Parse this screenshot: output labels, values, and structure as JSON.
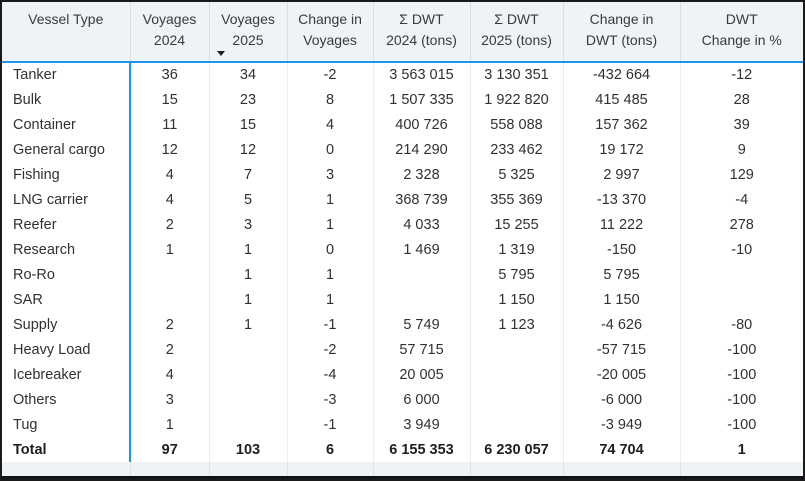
{
  "visual": {
    "type": "data-table",
    "description": "Vessel voyages and DWT comparison 2024 vs 2025"
  },
  "colors": {
    "accent_blue": "#1e96e8",
    "header_bg": "#eef3f6",
    "body_bg": "#ffffff",
    "frame_border": "#1a1a1a",
    "bottom_line": "#10141d",
    "header_separator": "#d9dfe3",
    "body_separator": "#eaeef1",
    "text": "#323130"
  },
  "table": {
    "columns": [
      {
        "id": "vessel_type",
        "label_lines": [
          "Vessel Type"
        ],
        "align": "left",
        "sort": null
      },
      {
        "id": "voyages_2024",
        "label_lines": [
          "Voyages",
          "2024"
        ],
        "align": "center",
        "sort": null
      },
      {
        "id": "voyages_2025",
        "label_lines": [
          "Voyages",
          "2025"
        ],
        "align": "center",
        "sort": "descending"
      },
      {
        "id": "change_voyages",
        "label_lines": [
          "Change in",
          "Voyages"
        ],
        "align": "center",
        "sort": null
      },
      {
        "id": "dwt_2024",
        "label_lines": [
          "Σ DWT",
          "2024 (tons)"
        ],
        "align": "center",
        "sort": null
      },
      {
        "id": "dwt_2025",
        "label_lines": [
          "Σ DWT",
          "2025 (tons)"
        ],
        "align": "center",
        "sort": null
      },
      {
        "id": "change_dwt",
        "label_lines": [
          "Change in",
          "DWT (tons)"
        ],
        "align": "center",
        "sort": null
      },
      {
        "id": "dwt_change_pct",
        "label_lines": [
          "DWT",
          "Change in %"
        ],
        "align": "center",
        "sort": null
      }
    ],
    "rows": [
      {
        "cells": [
          "Tanker",
          "36",
          "34",
          "-2",
          "3 563 015",
          "3 130 351",
          "-432 664",
          "-12"
        ]
      },
      {
        "cells": [
          "Bulk",
          "15",
          "23",
          "8",
          "1 507 335",
          "1 922 820",
          "415 485",
          "28"
        ]
      },
      {
        "cells": [
          "Container",
          "11",
          "15",
          "4",
          "400 726",
          "558 088",
          "157 362",
          "39"
        ]
      },
      {
        "cells": [
          "General cargo",
          "12",
          "12",
          "0",
          "214 290",
          "233 462",
          "19 172",
          "9"
        ]
      },
      {
        "cells": [
          "Fishing",
          "4",
          "7",
          "3",
          "2 328",
          "5 325",
          "2 997",
          "129"
        ]
      },
      {
        "cells": [
          "LNG carrier",
          "4",
          "5",
          "1",
          "368 739",
          "355 369",
          "-13 370",
          "-4"
        ]
      },
      {
        "cells": [
          "Reefer",
          "2",
          "3",
          "1",
          "4 033",
          "15 255",
          "11 222",
          "278"
        ]
      },
      {
        "cells": [
          "Research",
          "1",
          "1",
          "0",
          "1 469",
          "1 319",
          "-150",
          "-10"
        ]
      },
      {
        "cells": [
          "Ro-Ro",
          "",
          "1",
          "1",
          "",
          "5 795",
          "5 795",
          ""
        ]
      },
      {
        "cells": [
          "SAR",
          "",
          "1",
          "1",
          "",
          "1 150",
          "1 150",
          ""
        ]
      },
      {
        "cells": [
          "Supply",
          "2",
          "1",
          "-1",
          "5 749",
          "1 123",
          "-4 626",
          "-80"
        ]
      },
      {
        "cells": [
          "Heavy Load",
          "2",
          "",
          "-2",
          "57 715",
          "",
          "-57 715",
          "-100"
        ]
      },
      {
        "cells": [
          "Icebreaker",
          "4",
          "",
          "-4",
          "20 005",
          "",
          "-20 005",
          "-100"
        ]
      },
      {
        "cells": [
          "Others",
          "3",
          "",
          "-3",
          "6 000",
          "",
          "-6 000",
          "-100"
        ]
      },
      {
        "cells": [
          "Tug",
          "1",
          "",
          "-1",
          "3 949",
          "",
          "-3 949",
          "-100"
        ]
      }
    ],
    "total_row": {
      "cells": [
        "Total",
        "97",
        "103",
        "6",
        "6 155 353",
        "6 230 057",
        "74 704",
        "1"
      ]
    }
  }
}
